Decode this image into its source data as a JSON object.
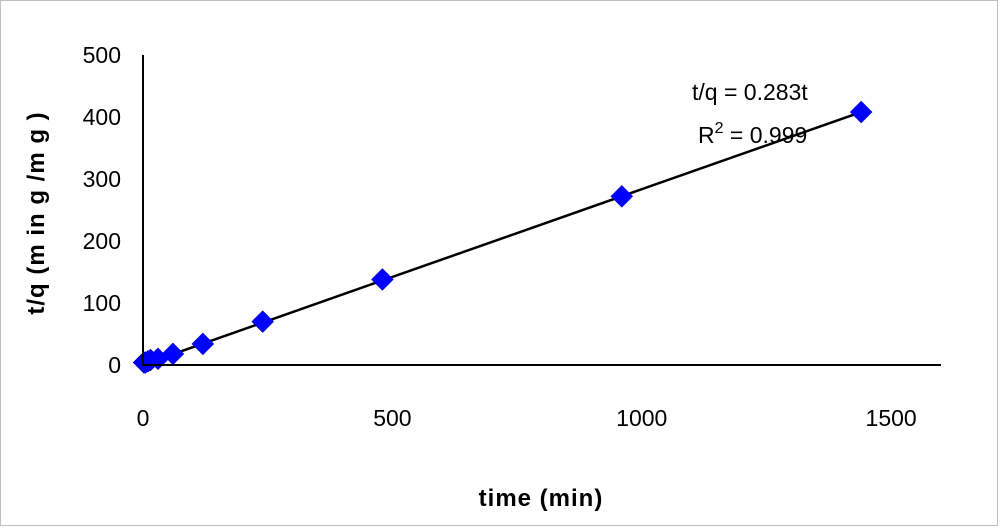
{
  "chart_data": {
    "type": "scatter",
    "xlabel": "time (min)",
    "ylabel": "t/q  (m in  g /m g )",
    "xlim": [
      0,
      1600
    ],
    "ylim": [
      0,
      500
    ],
    "xticks": [
      0,
      500,
      1000,
      1500
    ],
    "yticks": [
      0,
      100,
      200,
      300,
      400,
      500
    ],
    "grid": false,
    "marker_color": "#0000ff",
    "line_color": "#000000",
    "series": [
      {
        "marker": "diamond",
        "points": [
          {
            "x": 2,
            "y": 4
          },
          {
            "x": 5,
            "y": 4
          },
          {
            "x": 10,
            "y": 6
          },
          {
            "x": 15,
            "y": 8
          },
          {
            "x": 30,
            "y": 10
          },
          {
            "x": 60,
            "y": 18
          },
          {
            "x": 120,
            "y": 34
          },
          {
            "x": 240,
            "y": 70
          },
          {
            "x": 480,
            "y": 138
          },
          {
            "x": 960,
            "y": 272
          },
          {
            "x": 1440,
            "y": 408
          }
        ]
      }
    ],
    "trendline": {
      "x_start": 0,
      "x_end": 1440,
      "slope": 0.283,
      "intercept": 0.5
    },
    "annotations": {
      "equation": "t/q  =  0.283t",
      "r2_prefix": "R",
      "r2_exp": "2",
      "r2_rest": " =  0.999"
    }
  }
}
